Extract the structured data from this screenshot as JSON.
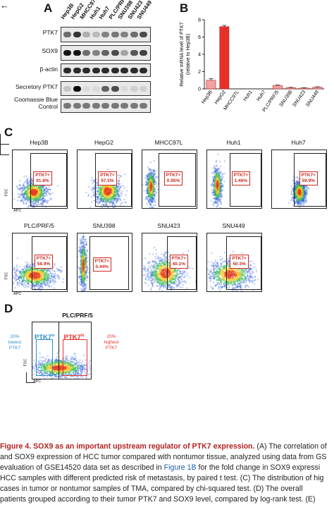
{
  "panel_a": {
    "letter": "A",
    "lanes": [
      "Hep3B",
      "HepG2",
      "MHCC97L",
      "Huh1",
      "Huh7",
      "PLC/PRF/5",
      "SNU398",
      "SNU423",
      "SNU449"
    ],
    "rows": [
      {
        "label": "PTK7",
        "intensities": [
          0.55,
          0.8,
          0.25,
          0.2,
          0.45,
          0.5,
          0.45,
          0.55,
          0.7
        ]
      },
      {
        "label": "SOX9",
        "intensities": [
          0.95,
          0.95,
          0.55,
          0.45,
          0.6,
          0.7,
          0.3,
          0.65,
          0.75
        ]
      },
      {
        "label": "β-actin",
        "intensities": [
          0.85,
          0.85,
          0.85,
          0.85,
          0.85,
          0.85,
          0.85,
          0.85,
          0.85
        ]
      },
      {
        "label": "Secretory PTK7",
        "intensities": [
          0.15,
          1.0,
          0.05,
          0.05,
          0.6,
          0.7,
          0.05,
          0.1,
          0.1
        ]
      },
      {
        "label": "Coomassie Blue Control",
        "intensities": [
          0.5,
          0.5,
          0.5,
          0.5,
          0.5,
          0.5,
          0.5,
          0.5,
          0.5
        ]
      }
    ],
    "arrow": "←"
  },
  "panel_b": {
    "letter": "B",
    "chart_data": {
      "type": "bar",
      "categories": [
        "Hep3B",
        "HepG2",
        "MHCC97L",
        "Huh1",
        "Huh7",
        "PLC/PRF/5",
        "SNU398",
        "SNU423",
        "SNU449"
      ],
      "values": [
        1.0,
        7.2,
        0.0,
        0.0,
        0.0,
        0.4,
        0.15,
        0.1,
        0.2
      ],
      "errors": [
        0.2,
        0.15,
        0.0,
        0.0,
        0.0,
        0.05,
        0.03,
        0.03,
        0.04
      ],
      "ylabel": "Relative mRNA level of PTK7 (relative to Hep3B)",
      "yticks": [
        0,
        2,
        4,
        6,
        8
      ],
      "ylim": [
        0,
        8
      ],
      "colors": {
        "Hep3B": "#f2a0a0",
        "HepG2": "#e8302a",
        "other": "#f2a0a0"
      }
    }
  },
  "panel_c": {
    "letter": "C",
    "plots": [
      {
        "name": "Hep3B",
        "gate_label": "PTK7+",
        "value": "91.8%"
      },
      {
        "name": "HepG2",
        "gate_label": "PTK7+",
        "value": "97.5%"
      },
      {
        "name": "MHCC97L",
        "gate_label": "PTK7+",
        "value": "0.95%"
      },
      {
        "name": "Huh1",
        "gate_label": "PTK7+",
        "value": "1.46%"
      },
      {
        "name": "Huh7",
        "gate_label": "PTK7+",
        "value": "59.9%"
      },
      {
        "name": "PLC/PRF/5",
        "gate_label": "PTK7+",
        "value": "58.9%"
      },
      {
        "name": "SNU398",
        "gate_label": "PTK7+",
        "value": "0.44%"
      },
      {
        "name": "SNU423",
        "gate_label": "PTK7+",
        "value": "40.1%"
      },
      {
        "name": "SNU449",
        "gate_label": "PTK7+",
        "value": "50.3%"
      }
    ],
    "fsc": "FSC",
    "apc": "APC"
  },
  "panel_d": {
    "letter": "D",
    "title": "PLC/PRF/5",
    "low_label": "PTK7",
    "low_sup": "lo",
    "high_label": "PTK7",
    "high_sup": "hi",
    "left_text": [
      "20%",
      "lowest",
      "PTK7"
    ],
    "right_text": [
      "20%",
      "highest",
      "PTK7"
    ],
    "fsc": "FSC",
    "apc": "APC",
    "colors": {
      "low": "#2a8fc9",
      "high": "#e8302a"
    }
  },
  "caption": {
    "title": "Figure 4. SOX9 as an important upstream regulator of PTK7 expression.",
    "lines": [
      "(A) The correlation of",
      "and SOX9 expression of HCC tumor compared with nontumor tissue, analyzed using data from GS",
      "evaluation of GSE14520 data set as described in Figure 1B for the fold change in SOX9 expressi",
      "HCC samples with different predicted risk of metastasis, by paired t test. (C) The distribution of hig",
      "cases in tumor or nontumor samples of TMA, compared by chi-squared test. (D) The overall",
      "patients grouped according to their tumor PTK7 and SOX9 level, compared by log-rank test. (E)"
    ],
    "link": "Figure 1B"
  }
}
